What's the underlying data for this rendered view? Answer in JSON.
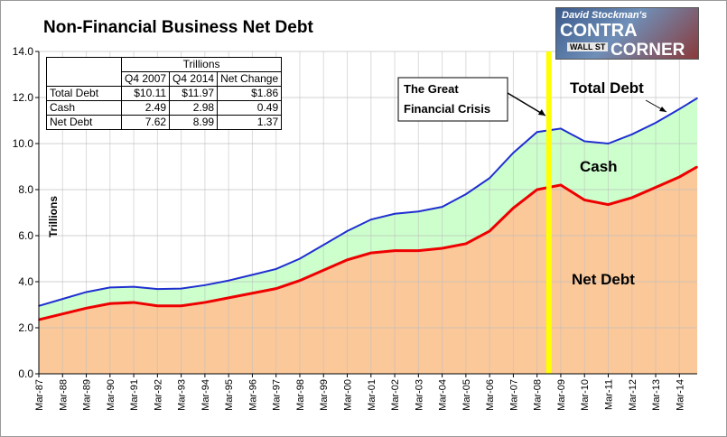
{
  "title": "Non-Financial Business Net Debt",
  "logo": {
    "line1": "David Stockman's",
    "line2": "CONTRA",
    "line3": "CORNER",
    "sign": "WALL ST"
  },
  "table": {
    "super_header": "Trillions",
    "columns": [
      "",
      "Q4 2007",
      "Q4 2014",
      "Net Change"
    ],
    "rows": [
      [
        "Total Debt",
        "$10.11",
        "$11.97",
        "$1.86"
      ],
      [
        "Cash",
        "2.49",
        "2.98",
        "0.49"
      ],
      [
        "Net Debt",
        "7.62",
        "8.99",
        "1.37"
      ]
    ]
  },
  "colors": {
    "net_debt_fill": "#fbc89a",
    "cash_fill": "#ccffcc",
    "total_debt_line": "#1f2fd0",
    "net_debt_line": "#ee0000",
    "crisis_line": "#ffff00",
    "grid": "#bdbdbd"
  },
  "chart_data": {
    "type": "area",
    "title": "Non-Financial Business Net Debt",
    "ylabel": "Trillions",
    "xlabel": "",
    "ylim": [
      0,
      14
    ],
    "yticks": [
      "0.0",
      "2.0",
      "4.0",
      "6.0",
      "8.0",
      "10.0",
      "12.0",
      "14.0"
    ],
    "xticks": [
      "Mar-87",
      "Mar-88",
      "Mar-89",
      "Mar-90",
      "Mar-91",
      "Mar-92",
      "Mar-93",
      "Mar-94",
      "Mar-95",
      "Mar-96",
      "Mar-97",
      "Mar-98",
      "Mar-99",
      "Mar-00",
      "Mar-01",
      "Mar-02",
      "Mar-03",
      "Mar-04",
      "Mar-05",
      "Mar-06",
      "Mar-07",
      "Mar-08",
      "Mar-09",
      "Mar-10",
      "Mar-11",
      "Mar-12",
      "Mar-13",
      "Mar-14"
    ],
    "grid": true,
    "x": [
      "Mar-87",
      "Mar-88",
      "Mar-89",
      "Mar-90",
      "Mar-91",
      "Mar-92",
      "Mar-93",
      "Mar-94",
      "Mar-95",
      "Mar-96",
      "Mar-97",
      "Mar-98",
      "Mar-99",
      "Mar-00",
      "Mar-01",
      "Mar-02",
      "Mar-03",
      "Mar-04",
      "Mar-05",
      "Mar-06",
      "Mar-07",
      "Mar-08",
      "Mar-09",
      "Mar-10",
      "Mar-11",
      "Mar-12",
      "Mar-13",
      "Mar-14",
      "Dec-14"
    ],
    "series": [
      {
        "name": "Total Debt",
        "values": [
          2.95,
          3.25,
          3.55,
          3.75,
          3.78,
          3.68,
          3.7,
          3.85,
          4.05,
          4.3,
          4.55,
          5.0,
          5.6,
          6.2,
          6.7,
          6.95,
          7.05,
          7.25,
          7.8,
          8.5,
          9.6,
          10.5,
          10.65,
          10.1,
          10.0,
          10.4,
          10.9,
          11.5,
          11.97
        ]
      },
      {
        "name": "Net Debt",
        "values": [
          2.35,
          2.6,
          2.85,
          3.05,
          3.1,
          2.95,
          2.95,
          3.1,
          3.3,
          3.5,
          3.7,
          4.05,
          4.5,
          4.95,
          5.25,
          5.35,
          5.35,
          5.45,
          5.65,
          6.2,
          7.2,
          8.0,
          8.2,
          7.55,
          7.35,
          7.65,
          8.1,
          8.55,
          8.99
        ]
      }
    ],
    "annotations": [
      {
        "text": "The Great",
        "text2": "Financial Crisis",
        "x": "Sep-08"
      },
      {
        "text": "Total Debt"
      },
      {
        "text": "Cash"
      },
      {
        "text": "Net Debt"
      }
    ]
  }
}
